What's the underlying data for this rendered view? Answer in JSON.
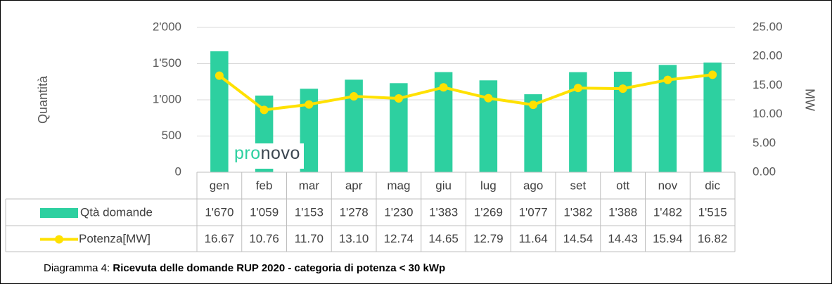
{
  "chart_data": {
    "type": "bar",
    "categories": [
      "gen",
      "feb",
      "mar",
      "apr",
      "mag",
      "giu",
      "lug",
      "ago",
      "set",
      "ott",
      "nov",
      "dic"
    ],
    "series": [
      {
        "name": "Qtà domande",
        "type": "bar",
        "color": "#2dd0a0",
        "values": [
          1670,
          1059,
          1153,
          1278,
          1230,
          1383,
          1269,
          1077,
          1382,
          1388,
          1482,
          1515
        ],
        "value_labels": [
          "1'670",
          "1'059",
          "1'153",
          "1'278",
          "1'230",
          "1'383",
          "1'269",
          "1'077",
          "1'382",
          "1'388",
          "1'482",
          "1'515"
        ]
      },
      {
        "name": "Potenza[MW]",
        "type": "line",
        "axis": "y2",
        "color": "#ffe100",
        "values": [
          16.67,
          10.76,
          11.7,
          13.1,
          12.74,
          14.65,
          12.79,
          11.64,
          14.54,
          14.43,
          15.94,
          16.82
        ],
        "value_labels": [
          "16.67",
          "10.76",
          "11.70",
          "13.10",
          "12.74",
          "14.65",
          "12.79",
          "11.64",
          "14.54",
          "14.43",
          "15.94",
          "16.82"
        ]
      }
    ],
    "ylabel": "Quantità",
    "y2label": "MW",
    "ylim": [
      0,
      2000
    ],
    "yticks": [
      0,
      500,
      {
        "value": 1000,
        "label": "1'000"
      },
      {
        "value": 1500,
        "label": "1'500"
      },
      {
        "value": 2000,
        "label": "2'000"
      }
    ],
    "y2lim": [
      0,
      25
    ],
    "y2ticks": [
      {
        "value": 0,
        "label": "0.00"
      },
      {
        "value": 5,
        "label": "5.00"
      },
      {
        "value": 10,
        "label": "10.00"
      },
      {
        "value": 15,
        "label": "15.00"
      },
      {
        "value": 20,
        "label": "20.00"
      },
      {
        "value": 25,
        "label": "25.00"
      }
    ],
    "grid": true,
    "watermark": {
      "part1": "pro",
      "part2": "novo"
    },
    "caption": {
      "label": "Diagramma 4:",
      "text": "Ricevuta delle domande RUP 2020 - categoria di potenza < 30 kWp"
    }
  }
}
